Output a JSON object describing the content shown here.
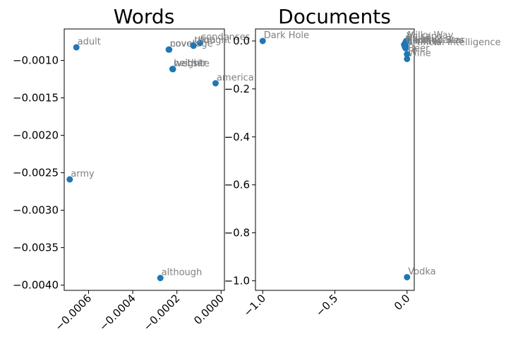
{
  "chart_data": [
    {
      "type": "scatter",
      "title": "Words",
      "xlabel": "",
      "ylabel": "",
      "xlim": [
        -0.00071,
        1.5e-05
      ],
      "ylim": [
        -0.00407,
        -0.00058
      ],
      "xticks": [
        {
          "v": -0.0006,
          "label": "−0.0006"
        },
        {
          "v": -0.0004,
          "label": "−0.0004"
        },
        {
          "v": -0.0002,
          "label": "−0.0002"
        },
        {
          "v": 0.0,
          "label": "0.0000"
        }
      ],
      "yticks": [
        {
          "v": -0.001,
          "label": "−0.0010"
        },
        {
          "v": -0.0015,
          "label": "−0.0015"
        },
        {
          "v": -0.002,
          "label": "−0.0020"
        },
        {
          "v": -0.0025,
          "label": "−0.0025"
        },
        {
          "v": -0.003,
          "label": "−0.0030"
        },
        {
          "v": -0.0035,
          "label": "−0.0035"
        },
        {
          "v": -0.004,
          "label": "−0.0040"
        }
      ],
      "points": [
        {
          "label": "adult",
          "x": -0.000655,
          "y": -0.000825
        },
        {
          "label": "army",
          "x": -0.000685,
          "y": -0.002588
        },
        {
          "label": "although",
          "x": -0.000275,
          "y": -0.003905
        },
        {
          "label": "coverage",
          "x": -0.000235,
          "y": -0.000855
        },
        {
          "label": "novel",
          "x": -0.000237,
          "y": -0.000855
        },
        {
          "label": "neither",
          "x": -0.00022,
          "y": -0.001115
        },
        {
          "label": "height",
          "x": -0.000219,
          "y": -0.001113
        },
        {
          "label": "website",
          "x": -0.000218,
          "y": -0.001117
        },
        {
          "label": "condenses",
          "x": -9.5e-05,
          "y": -0.000765
        },
        {
          "label": "thought",
          "x": -0.000125,
          "y": -0.000805
        },
        {
          "label": "ultra",
          "x": -0.000126,
          "y": -0.0008
        },
        {
          "label": "america",
          "x": -2.5e-05,
          "y": -0.001305
        }
      ]
    },
    {
      "type": "scatter",
      "title": "Documents",
      "xlabel": "",
      "ylabel": "",
      "xlim": [
        -1.05,
        0.05
      ],
      "ylim": [
        -1.04,
        0.05
      ],
      "xticks": [
        {
          "v": -1.0,
          "label": "−1.0"
        },
        {
          "v": -0.5,
          "label": "−0.5"
        },
        {
          "v": 0.0,
          "label": "0.0"
        }
      ],
      "yticks": [
        {
          "v": 0.0,
          "label": "0.0"
        },
        {
          "v": -0.2,
          "label": "−0.2"
        },
        {
          "v": -0.4,
          "label": "−0.4"
        },
        {
          "v": -0.6,
          "label": "−0.6"
        },
        {
          "v": -0.8,
          "label": "−0.8"
        },
        {
          "v": -1.0,
          "label": "−1.0"
        }
      ],
      "points": [
        {
          "label": "Dark Hole",
          "x": -1.0,
          "y": 0.0
        },
        {
          "label": "Vodka",
          "x": 0.0,
          "y": -0.985
        },
        {
          "label": "Wine",
          "x": 0.0,
          "y": -0.075
        },
        {
          "label": "Beer",
          "x": 0.0,
          "y": -0.055
        },
        {
          "label": "Artificial Intelligence",
          "x": -0.01,
          "y": -0.03
        },
        {
          "label": "Earthquakes",
          "x": -0.01,
          "y": -0.02
        },
        {
          "label": "Climate",
          "x": -0.015,
          "y": -0.025
        },
        {
          "label": "Milky Way",
          "x": -0.005,
          "y": 0.0
        },
        {
          "label": "Volcano",
          "x": -0.01,
          "y": -0.005
        },
        {
          "label": "Galaxy",
          "x": -0.02,
          "y": -0.015
        },
        {
          "label": "Neutron Star",
          "x": -0.015,
          "y": -0.02
        }
      ]
    }
  ]
}
